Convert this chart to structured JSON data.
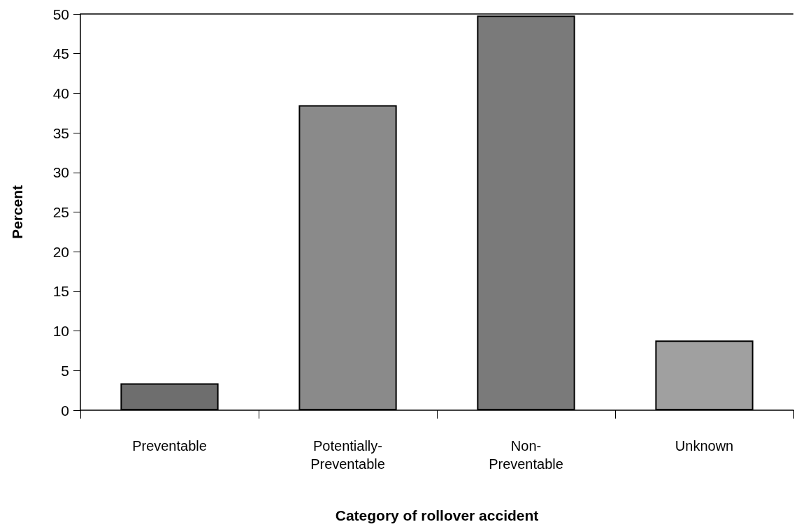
{
  "chart_data": {
    "type": "bar",
    "xlabel": "Category of rollover accident",
    "ylabel": "Percent",
    "categories": [
      "Preventable",
      "Potentially-\nPreventable",
      "Non-\nPreventable",
      "Unknown"
    ],
    "values": [
      3.4,
      38.5,
      49.8,
      8.8
    ],
    "colors": [
      "#6e6e6e",
      "#8a8a8a",
      "#7a7a7a",
      "#a0a0a0"
    ],
    "ylim": [
      0,
      50
    ],
    "yticks": [
      0,
      5,
      10,
      15,
      20,
      25,
      30,
      35,
      40,
      45,
      50
    ],
    "grid": false
  }
}
